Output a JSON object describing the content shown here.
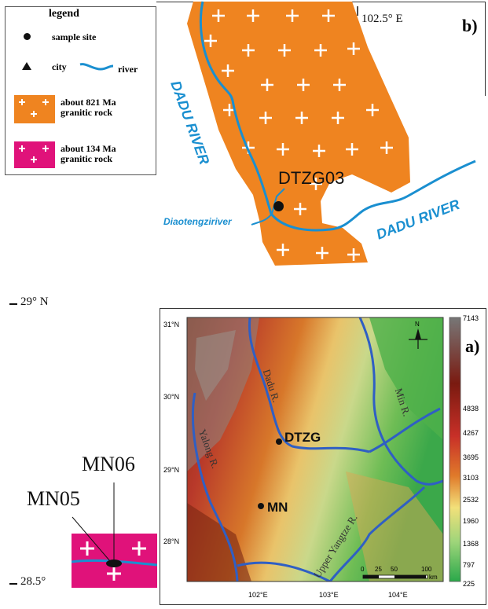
{
  "legend": {
    "title": "legend",
    "sample_site": "sample site",
    "city": "city",
    "river": "river",
    "granite_821_line1": "about 821 Ma",
    "granite_821_line2": "granitic rock",
    "granite_134_line1": "about 134 Ma",
    "granite_134_line2": "granitic rock"
  },
  "panel_b": {
    "label": "b)",
    "longitude": "102.5° E",
    "sample_label": "DTZG03",
    "river_main_left": "DADU RIVER",
    "river_main_right": "DADU RIVER",
    "tributary": "Diaotengziriver"
  },
  "latitudes": {
    "n29": "29° N",
    "n28_5": "28.5°"
  },
  "panel_c": {
    "label_top": "MN06",
    "label_left": "MN05"
  },
  "panel_a": {
    "label": "a)",
    "lat_ticks": [
      "31°N",
      "30°N",
      "29°N",
      "28°N"
    ],
    "lon_ticks": [
      "102°E",
      "103°E",
      "104°E"
    ],
    "sites": [
      "DTZG",
      "MN"
    ],
    "rivers": [
      "Dadu R.",
      "Min R.",
      "Yalong R.",
      "Upper Yangtze R."
    ],
    "scale": [
      "0",
      "25",
      "50",
      "100",
      "km"
    ],
    "colorbar": [
      "7143",
      "4838",
      "4267",
      "3695",
      "3103",
      "2532",
      "1960",
      "1368",
      "797",
      "225"
    ],
    "compass": "N"
  },
  "colors": {
    "orange": "#ef8420",
    "magenta": "#e0127a",
    "river": "#1a8fd0",
    "river_a": "#2f5fc4"
  }
}
